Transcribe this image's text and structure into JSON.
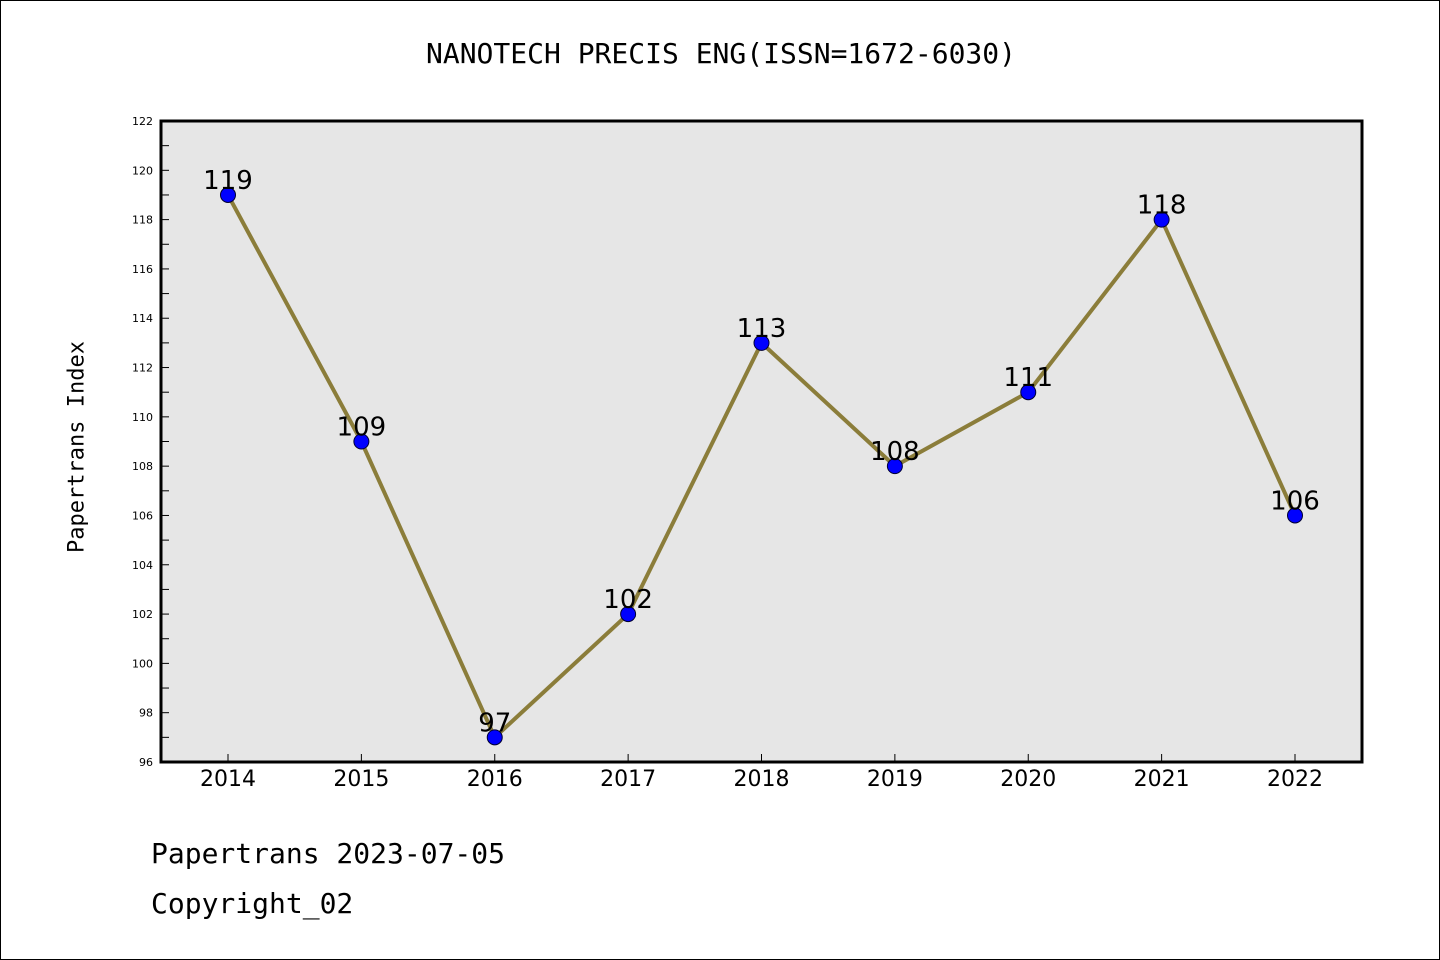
{
  "chart_data": {
    "type": "line",
    "title": "NANOTECH PRECIS ENG(ISSN=1672-6030)",
    "xlabel": "",
    "ylabel": "Papertrans Index",
    "categories": [
      "2014",
      "2015",
      "2016",
      "2017",
      "2018",
      "2019",
      "2020",
      "2021",
      "2022"
    ],
    "series": [
      {
        "values": [
          119,
          109,
          97,
          102,
          113,
          108,
          111,
          118,
          106
        ],
        "line_color": "#8b7d3a",
        "marker_color": "#0000ff"
      }
    ],
    "data_labels": [
      "119",
      "109",
      "97",
      "102",
      "113",
      "108",
      "111",
      "118",
      "106"
    ],
    "ylim": [
      96,
      122
    ],
    "yticks": [
      96,
      98,
      100,
      102,
      104,
      106,
      108,
      110,
      112,
      114,
      116,
      118,
      120,
      122
    ],
    "grid": false,
    "plot_background": "#e6e6e6"
  },
  "footer": {
    "date_line": "Papertrans 2023-07-05",
    "copyright": "Copyright_02"
  }
}
